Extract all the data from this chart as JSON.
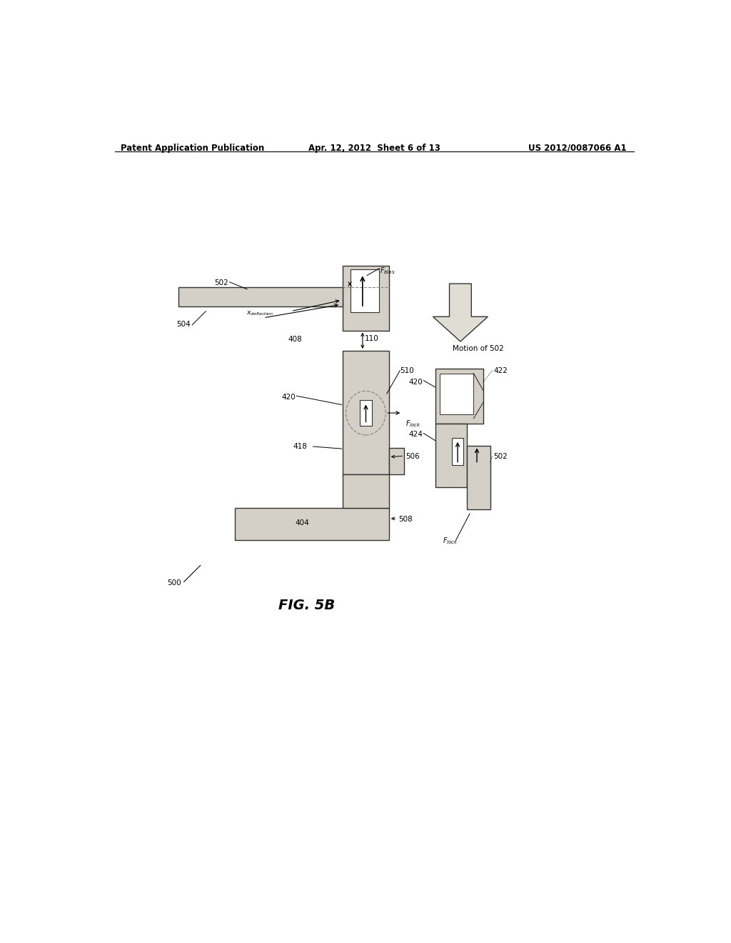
{
  "bg_color": "#ffffff",
  "header_left": "Patent Application Publication",
  "header_center": "Apr. 12, 2012  Sheet 6 of 13",
  "header_right": "US 2012/0087066 A1",
  "figure_label": "FIG. 5B",
  "fill_light": "#d4d0c8",
  "fill_med": "#c8c4bc",
  "outline_color": "#666660",
  "arrow_color": "#000000"
}
